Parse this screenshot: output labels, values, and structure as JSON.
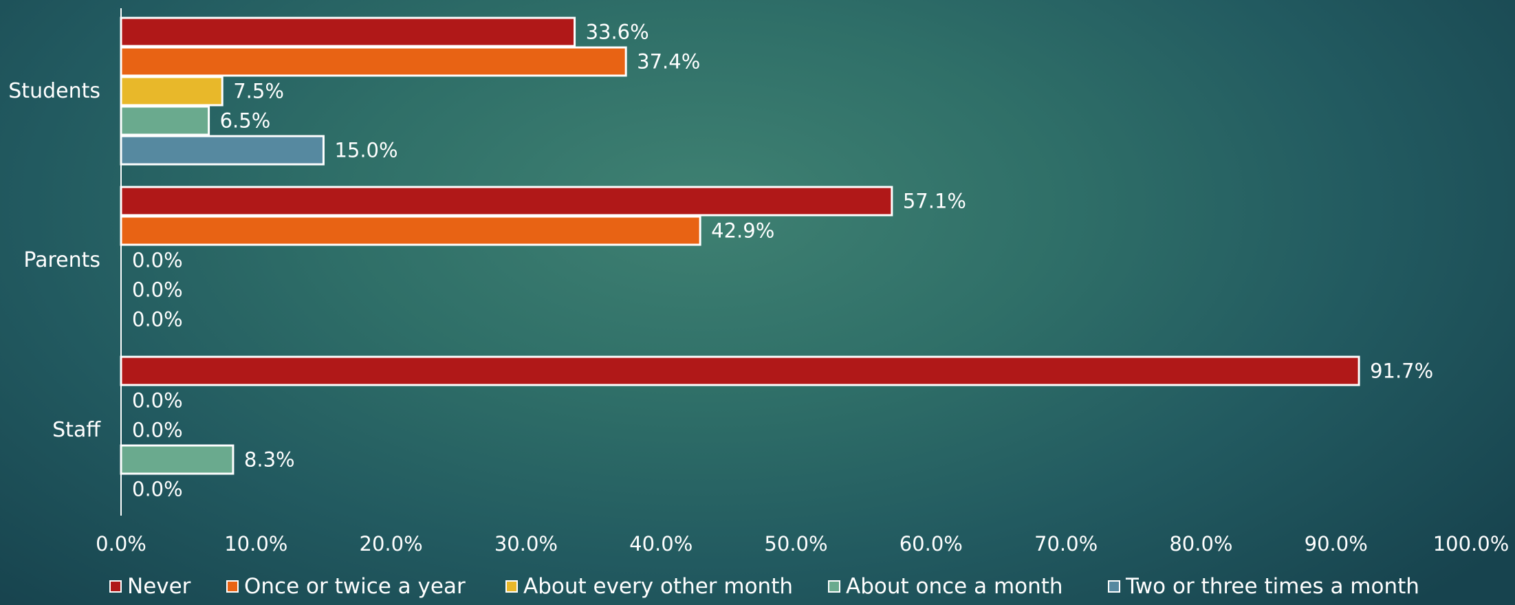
{
  "chart_data": {
    "type": "bar",
    "orientation": "horizontal",
    "categories": [
      "Students",
      "Parents",
      "Staff"
    ],
    "series": [
      {
        "name": "Never",
        "color": "#b01818",
        "values": [
          33.6,
          57.1,
          91.7
        ],
        "labels": [
          "33.6%",
          "57.1%",
          "91.7%"
        ]
      },
      {
        "name": "Once or twice a year",
        "color": "#e86314",
        "values": [
          37.4,
          42.9,
          0.0
        ],
        "labels": [
          "37.4%",
          "42.9%",
          "0.0%"
        ]
      },
      {
        "name": "About every other month",
        "color": "#e8b82a",
        "values": [
          7.5,
          0.0,
          0.0
        ],
        "labels": [
          "7.5%",
          "0.0%",
          "0.0%"
        ]
      },
      {
        "name": "About once a month",
        "color": "#6aaa8e",
        "values": [
          6.5,
          0.0,
          8.3
        ],
        "labels": [
          "6.5%",
          "0.0%",
          "8.3%"
        ]
      },
      {
        "name": "Two or three times a month",
        "color": "#5689a0",
        "values": [
          15.0,
          0.0,
          0.0
        ],
        "labels": [
          "15.0%",
          "0.0%",
          "0.0%"
        ]
      }
    ],
    "xlim": [
      0,
      100
    ],
    "xticks": [
      0,
      10,
      20,
      30,
      40,
      50,
      60,
      70,
      80,
      90,
      100
    ],
    "xtick_labels": [
      "0.0%",
      "10.0%",
      "20.0%",
      "30.0%",
      "40.0%",
      "50.0%",
      "60.0%",
      "70.0%",
      "80.0%",
      "90.0%",
      "100.0%"
    ],
    "title": "",
    "xlabel": "",
    "ylabel": "",
    "grid": false,
    "legend": "bottom",
    "bar_outline_color": "#ffffff",
    "text_color": "#ffffff"
  }
}
